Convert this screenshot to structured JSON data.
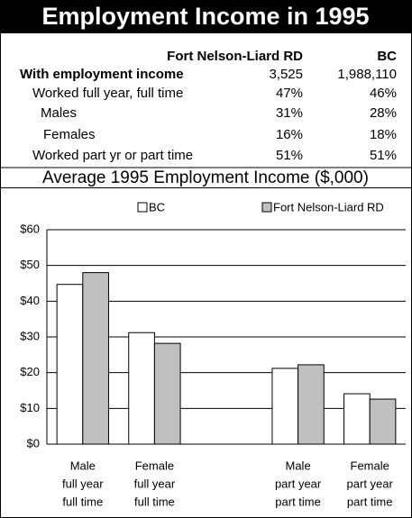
{
  "header": {
    "title": "Employment Income in 1995"
  },
  "table": {
    "columns": [
      "Fort Nelson-Liard RD",
      "BC"
    ],
    "rows": [
      {
        "label": "With employment income",
        "values": [
          "3,525",
          "1,988,110"
        ]
      },
      {
        "label": "Worked full year, full time",
        "values": [
          "47%",
          "46%"
        ]
      },
      {
        "label": "Males",
        "values": [
          "31%",
          "28%"
        ]
      },
      {
        "label": "Females",
        "values": [
          "16%",
          "18%"
        ]
      },
      {
        "label": "Worked part yr or part time",
        "values": [
          "51%",
          "51%"
        ]
      }
    ]
  },
  "chart_data": {
    "type": "bar",
    "title": "Average 1995 Employment Income ($,000)",
    "categories": [
      [
        "Male",
        "full year",
        "full time"
      ],
      [
        "Female",
        "full year",
        "full time"
      ],
      null,
      [
        "Male",
        "part year",
        "part time"
      ],
      [
        "Female",
        "part year",
        "part time"
      ]
    ],
    "series": [
      {
        "name": "BC",
        "color": "#ffffff",
        "values": [
          44.7,
          31.2,
          null,
          21.2,
          14.1
        ]
      },
      {
        "name": "Fort Nelson-Liard RD",
        "color": "#c0c0c0",
        "values": [
          48,
          28.2,
          null,
          22.2,
          12.6
        ]
      }
    ],
    "ylim": [
      0,
      60
    ],
    "yticks": [
      {
        "value": 0,
        "label": "$0"
      },
      {
        "value": 10,
        "label": "$10"
      },
      {
        "value": 20,
        "label": "$20"
      },
      {
        "value": 30,
        "label": "$30"
      },
      {
        "value": 40,
        "label": "$40"
      },
      {
        "value": 50,
        "label": "$50"
      },
      {
        "value": 60,
        "label": "$60"
      }
    ],
    "grid": true,
    "legend": "top"
  }
}
